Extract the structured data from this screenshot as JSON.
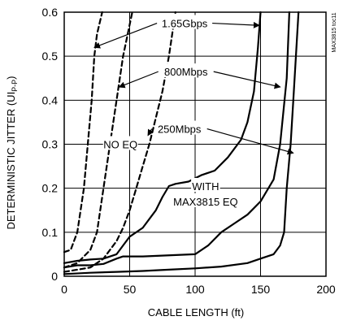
{
  "chart_data": {
    "type": "line",
    "xlabel": "CABLE LENGTH (ft)",
    "ylabel_main": "DETERMINISTIC JITTER (UI",
    "ylabel_sub": "P-P",
    "ylabel_end": ")",
    "xlim": [
      0,
      200
    ],
    "ylim": [
      0,
      0.6
    ],
    "x_ticks": [
      0,
      50,
      100,
      150,
      200
    ],
    "x_tick_labels": [
      "0",
      "50",
      "100",
      "150",
      "200"
    ],
    "y_ticks": [
      0,
      0.1,
      0.2,
      0.3,
      0.4,
      0.5,
      0.6
    ],
    "y_tick_labels": [
      "0",
      "0.1",
      "0.2",
      "0.3",
      "0.4",
      "0.5",
      "0.6"
    ],
    "grid": true,
    "side_text": "MAX3815 toc11",
    "series": [
      {
        "name": "1.65Gbps",
        "group": "NO EQ",
        "style": "dashed",
        "x": [
          0,
          5,
          10,
          15,
          18,
          21,
          23,
          25,
          29
        ],
        "y": [
          0.055,
          0.06,
          0.1,
          0.2,
          0.3,
          0.4,
          0.5,
          0.55,
          0.6
        ]
      },
      {
        "name": "800Mbps",
        "group": "NO EQ",
        "style": "dashed",
        "x": [
          0,
          10,
          20,
          25,
          30,
          35,
          40,
          45,
          52
        ],
        "y": [
          0.02,
          0.03,
          0.06,
          0.1,
          0.2,
          0.3,
          0.4,
          0.5,
          0.6
        ]
      },
      {
        "name": "250Mbps",
        "group": "NO EQ",
        "style": "dashed",
        "x": [
          0,
          20,
          30,
          40,
          45,
          50,
          55,
          60,
          65,
          70,
          75,
          80,
          85
        ],
        "y": [
          0.01,
          0.02,
          0.04,
          0.08,
          0.11,
          0.15,
          0.2,
          0.25,
          0.3,
          0.36,
          0.42,
          0.5,
          0.6
        ]
      },
      {
        "name": "1.65Gbps",
        "group": "WITH MAX3815 EQ",
        "style": "solid",
        "x": [
          0,
          10,
          20,
          30,
          40,
          45,
          50,
          60,
          70,
          75,
          80,
          85,
          95,
          105,
          115,
          125,
          135,
          140,
          145,
          148,
          150
        ],
        "y": [
          0.03,
          0.035,
          0.038,
          0.04,
          0.05,
          0.07,
          0.09,
          0.11,
          0.15,
          0.18,
          0.205,
          0.21,
          0.215,
          0.23,
          0.24,
          0.27,
          0.31,
          0.35,
          0.42,
          0.52,
          0.6
        ]
      },
      {
        "name": "800Mbps",
        "group": "WITH MAX3815 EQ",
        "style": "solid",
        "x": [
          0,
          10,
          20,
          30,
          40,
          45,
          60,
          100,
          110,
          120,
          130,
          140,
          150,
          160,
          165,
          170,
          172
        ],
        "y": [
          0.02,
          0.025,
          0.025,
          0.028,
          0.04,
          0.045,
          0.045,
          0.05,
          0.07,
          0.1,
          0.12,
          0.14,
          0.17,
          0.22,
          0.3,
          0.45,
          0.6
        ]
      },
      {
        "name": "250Mbps",
        "group": "WITH MAX3815 EQ",
        "style": "solid",
        "x": [
          0,
          20,
          40,
          60,
          80,
          100,
          120,
          140,
          150,
          160,
          165,
          168,
          170,
          173,
          175,
          177,
          179
        ],
        "y": [
          0.005,
          0.008,
          0.01,
          0.012,
          0.015,
          0.018,
          0.022,
          0.03,
          0.04,
          0.05,
          0.07,
          0.1,
          0.2,
          0.3,
          0.4,
          0.5,
          0.6
        ]
      }
    ],
    "annotations": [
      {
        "text": "1.65Gbps",
        "x": 92,
        "y": 0.575,
        "arrows": [
          [
            23,
            0.52
          ],
          [
            149,
            0.57
          ]
        ]
      },
      {
        "text": "800Mbps",
        "x": 93,
        "y": 0.465,
        "arrows": [
          [
            42,
            0.43
          ],
          [
            165,
            0.43
          ]
        ]
      },
      {
        "text": "250Mbps",
        "x": 88,
        "y": 0.335,
        "arrows": [
          [
            64,
            0.32
          ],
          [
            175,
            0.28
          ]
        ]
      },
      {
        "text": "NO EQ",
        "x": 43,
        "y": 0.3,
        "arrows": []
      },
      {
        "text": "WITH",
        "x": 108,
        "y": 0.205,
        "arrows": []
      },
      {
        "text": "MAX3815 EQ",
        "x": 108,
        "y": 0.17,
        "arrows": []
      }
    ]
  }
}
